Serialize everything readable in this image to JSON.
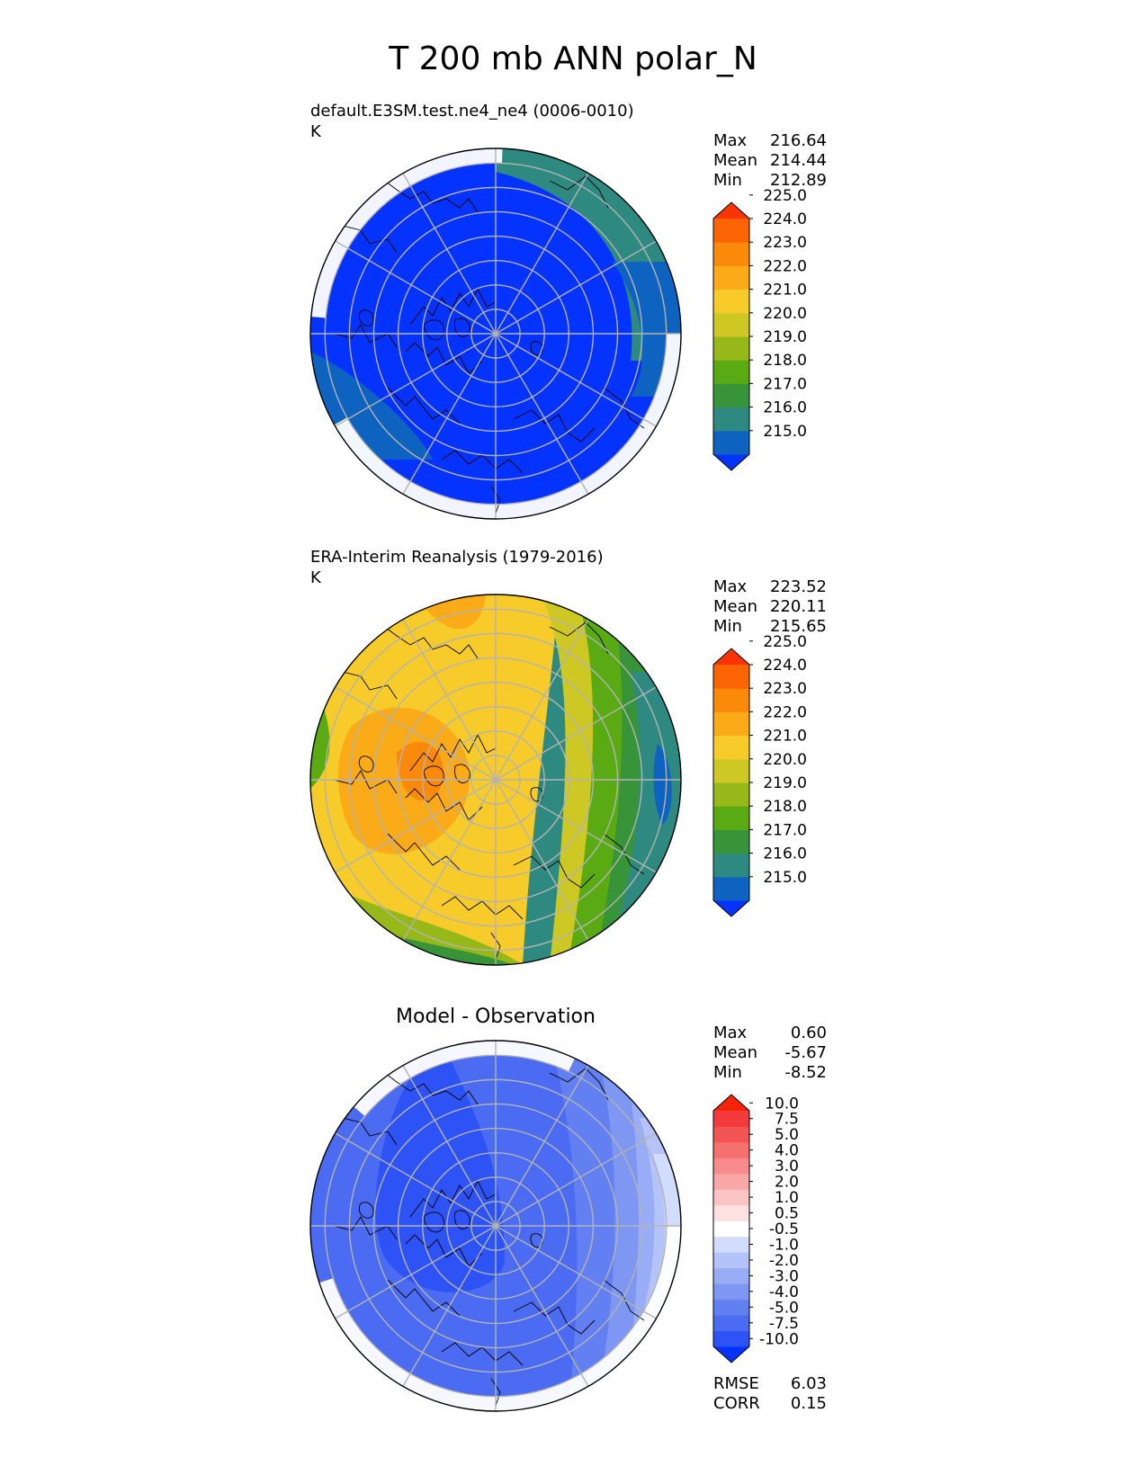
{
  "title": "T 200 mb ANN polar_N",
  "colors": {
    "abs_levels": [
      "#0433ff",
      "#0e63c0",
      "#2e8a80",
      "#389438",
      "#5aaa14",
      "#96b818",
      "#cdc824",
      "#f7cc2a",
      "#fcab18",
      "#fc8a0a",
      "#fc6404",
      "#fc3404"
    ],
    "diff_levels": [
      "#0432ff",
      "#2d52f6",
      "#4a6bf2",
      "#6280f2",
      "#7d97f3",
      "#99adf6",
      "#b4c3f9",
      "#d2dcfc",
      "#ffffff",
      "#fde0e0",
      "#fbc4c4",
      "#f9a8a8",
      "#f88c8c",
      "#f77070",
      "#f55454",
      "#f43a3a",
      "#f62406"
    ],
    "graticule": "#b3b3b3",
    "coast": "#000000"
  },
  "panels": [
    {
      "id": "test",
      "title": "default.E3SM.test.ne4_ne4 (0006-0010)",
      "units": "K",
      "stats": [
        {
          "label": "Max",
          "value": "216.64"
        },
        {
          "label": "Mean",
          "value": "214.44"
        },
        {
          "label": "Min",
          "value": "212.89"
        }
      ],
      "colorbar_ticks": [
        "215.0",
        "216.0",
        "217.0",
        "218.0",
        "219.0",
        "220.0",
        "221.0",
        "222.0",
        "223.0",
        "224.0",
        "225.0"
      ],
      "field_levels": [
        0,
        0,
        0,
        0,
        0,
        0,
        0,
        1,
        1,
        2,
        2,
        0,
        0
      ]
    },
    {
      "id": "ref",
      "title": "ERA-Interim Reanalysis (1979-2016)",
      "units": "K",
      "stats": [
        {
          "label": "Max",
          "value": "223.52"
        },
        {
          "label": "Mean",
          "value": "220.11"
        },
        {
          "label": "Min",
          "value": "215.65"
        }
      ],
      "colorbar_ticks": [
        "215.0",
        "216.0",
        "217.0",
        "218.0",
        "219.0",
        "220.0",
        "221.0",
        "222.0",
        "223.0",
        "224.0",
        "225.0"
      ],
      "field_levels": [
        2,
        3,
        4,
        5,
        6,
        7,
        8,
        9,
        8,
        7,
        6,
        5,
        3
      ]
    },
    {
      "id": "diff",
      "title": "Model - Observation",
      "stats": [
        {
          "label": "Max",
          "value": "0.60"
        },
        {
          "label": "Mean",
          "value": "-5.67"
        },
        {
          "label": "Min",
          "value": "-8.52"
        }
      ],
      "colorbar_ticks": [
        "-10.0",
        "-7.5",
        "-5.0",
        "-4.0",
        "-3.0",
        "-2.0",
        "-1.0",
        "-0.5",
        "0.5",
        "1.0",
        "2.0",
        "3.0",
        "4.0",
        "5.0",
        "7.5",
        "10.0"
      ],
      "field_levels": [
        2,
        2,
        3,
        4,
        5,
        6,
        7,
        8,
        5,
        3
      ]
    }
  ],
  "metrics": [
    {
      "label": "RMSE",
      "value": "6.03"
    },
    {
      "label": "CORR",
      "value": "0.15"
    }
  ],
  "chart_data": [
    {
      "type": "heatmap",
      "projection": "north polar stereographic",
      "title": "default.E3SM.test.ne4_ne4 (0006-0010)",
      "units": "K",
      "max": 216.64,
      "mean": 214.44,
      "min": 212.89,
      "levels": [
        215,
        216,
        217,
        218,
        219,
        220,
        221,
        222,
        223,
        224,
        225
      ],
      "extend": "both"
    },
    {
      "type": "heatmap",
      "projection": "north polar stereographic",
      "title": "ERA-Interim Reanalysis (1979-2016)",
      "units": "K",
      "max": 223.52,
      "mean": 220.11,
      "min": 215.65,
      "levels": [
        215,
        216,
        217,
        218,
        219,
        220,
        221,
        222,
        223,
        224,
        225
      ],
      "extend": "both"
    },
    {
      "type": "heatmap",
      "projection": "north polar stereographic",
      "title": "Model - Observation",
      "max": 0.6,
      "mean": -5.67,
      "min": -8.52,
      "rmse": 6.03,
      "corr": 0.15,
      "levels": [
        -10,
        -7.5,
        -5,
        -4,
        -3,
        -2,
        -1,
        -0.5,
        0.5,
        1,
        2,
        3,
        4,
        5,
        7.5,
        10
      ],
      "extend": "both"
    }
  ]
}
